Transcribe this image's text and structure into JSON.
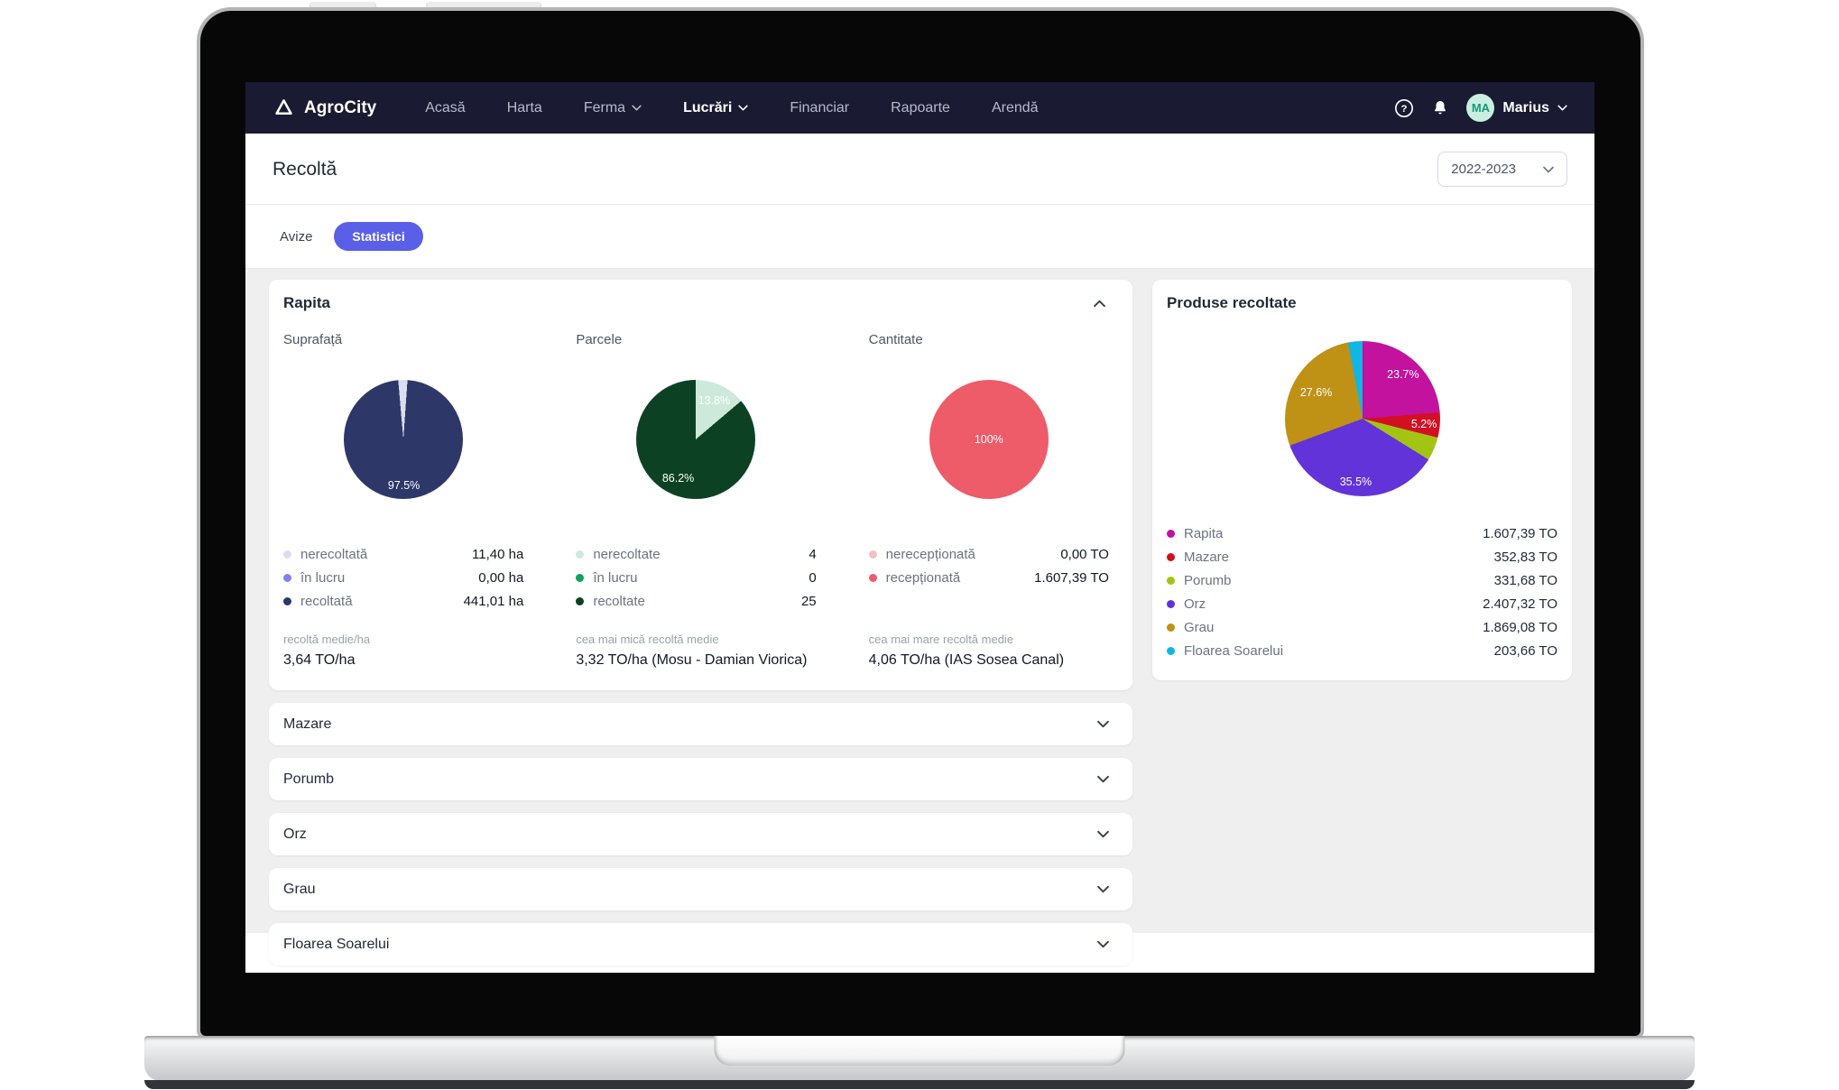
{
  "colors": {
    "navbar_bg": "#1a1b32",
    "accent_pill": "#5a5fe8",
    "avatar_bg": "#c8efdf",
    "content_bg": "#efefef"
  },
  "navbar": {
    "brand": "AgroCity",
    "help_glyph": "?",
    "items": [
      {
        "label": "Acasă",
        "chevron": false,
        "active": false
      },
      {
        "label": "Harta",
        "chevron": false,
        "active": false
      },
      {
        "label": "Ferma",
        "chevron": true,
        "active": false
      },
      {
        "label": "Lucrări",
        "chevron": true,
        "active": true
      },
      {
        "label": "Financiar",
        "chevron": false,
        "active": false
      },
      {
        "label": "Rapoarte",
        "chevron": false,
        "active": false
      },
      {
        "label": "Arendă",
        "chevron": false,
        "active": false
      }
    ],
    "user": {
      "initials": "MA",
      "name": "Marius"
    }
  },
  "header": {
    "title": "Recoltă",
    "year": "2022-2023"
  },
  "tabs": [
    {
      "label": "Avize",
      "active": false
    },
    {
      "label": "Statistici",
      "active": true
    }
  ],
  "rapita": {
    "title": "Rapita",
    "columns": [
      {
        "label": "Suprafață",
        "legend": [
          {
            "name": "nerecoltată",
            "value": "11,40 ha",
            "color": "#d9def5"
          },
          {
            "name": "în lucru",
            "value": "0,00 ha",
            "color": "#7d82ef"
          },
          {
            "name": "recoltată",
            "value": "441,01 ha",
            "color": "#2d3869"
          }
        ],
        "stat": {
          "label": "recoltă medie/ha",
          "value": "3,64 TO/ha"
        }
      },
      {
        "label": "Parcele",
        "legend": [
          {
            "name": "nerecoltate",
            "value": "4",
            "color": "#cde9da"
          },
          {
            "name": "în lucru",
            "value": "0",
            "color": "#0fa35b"
          },
          {
            "name": "recoltate",
            "value": "25",
            "color": "#0c4223"
          }
        ],
        "stat": {
          "label": "cea mai mică recoltă medie",
          "value": "3,32 TO/ha (Mosu - Damian Viorica)"
        }
      },
      {
        "label": "Cantitate",
        "legend": [
          {
            "name": "nerecepționată",
            "value": "0,00 TO",
            "color": "#f4bfc4"
          },
          {
            "name": "recepționată",
            "value": "1.607,39 TO",
            "color": "#ed5c68"
          }
        ],
        "stat": {
          "label": "cea mai mare recoltă medie",
          "value": "4,06 TO/ha (IAS Sosea Canal)"
        }
      }
    ]
  },
  "produse": {
    "title": "Produse recoltate",
    "items": [
      {
        "name": "Rapita",
        "value": "1.607,39 TO",
        "color": "#c2129e"
      },
      {
        "name": "Mazare",
        "value": "352,83 TO",
        "color": "#d30f22"
      },
      {
        "name": "Porumb",
        "value": "331,68 TO",
        "color": "#a2c513"
      },
      {
        "name": "Orz",
        "value": "2.407,32 TO",
        "color": "#6133d9"
      },
      {
        "name": "Grau",
        "value": "1.869,08 TO",
        "color": "#bf9115"
      },
      {
        "name": "Floarea Soarelui",
        "value": "203,66 TO",
        "color": "#13b5e2"
      }
    ]
  },
  "accordions": [
    {
      "title": "Mazare"
    },
    {
      "title": "Porumb"
    },
    {
      "title": "Orz"
    },
    {
      "title": "Grau"
    },
    {
      "title": "Floarea Soarelui"
    }
  ],
  "chart_data": [
    {
      "type": "pie",
      "title": "Suprafață",
      "unit": "ha",
      "rotate": -5,
      "slices": [
        {
          "name": "nerecoltată",
          "value": 11.4,
          "pct": 2.5,
          "pct_label": "2.5%",
          "color": "#d9def5",
          "show_label": false
        },
        {
          "name": "în lucru",
          "value": 0.0,
          "pct": 0,
          "pct_label": "0%",
          "color": "#7d82ef",
          "show_label": false
        },
        {
          "name": "recoltată",
          "value": 441.01,
          "pct": 97.5,
          "pct_label": "97.5%",
          "color": "#2d3869",
          "show_label": true,
          "label_r": 0.78
        }
      ]
    },
    {
      "type": "pie",
      "title": "Parcele",
      "unit": "parcele",
      "rotate": 0,
      "slices": [
        {
          "name": "nerecoltate",
          "value": 4,
          "pct": 13.8,
          "pct_label": "13.8%",
          "color": "#cde9da",
          "show_label": true,
          "label_r": 0.72
        },
        {
          "name": "în lucru",
          "value": 0,
          "pct": 0,
          "pct_label": "0%",
          "color": "#0fa35b",
          "show_label": false
        },
        {
          "name": "recoltate",
          "value": 25,
          "pct": 86.2,
          "pct_label": "86.2%",
          "color": "#0c4223",
          "show_label": true,
          "label_r": 0.72
        }
      ]
    },
    {
      "type": "pie",
      "title": "Cantitate",
      "unit": "TO",
      "rotate": 0,
      "slices": [
        {
          "name": "nerecepționată",
          "value": 0.0,
          "pct": 0,
          "pct_label": "0%",
          "color": "#f4bfc4",
          "show_label": false
        },
        {
          "name": "recepționată",
          "value": 1607.39,
          "pct": 100,
          "pct_label": "100%",
          "color": "#ed5c68",
          "show_label": true,
          "label_r": 0
        }
      ]
    },
    {
      "type": "pie",
      "title": "Produse recoltate",
      "unit": "TO",
      "rotate": 0,
      "slices": [
        {
          "name": "Rapita",
          "value": 1607.39,
          "pct": 23.7,
          "pct_label": "23.7%",
          "color": "#c2129e",
          "show_label": true,
          "label_r": 0.78
        },
        {
          "name": "Mazare",
          "value": 352.83,
          "pct": 5.2,
          "pct_label": "5.2%",
          "color": "#d30f22",
          "show_label": true,
          "label_r": 0.8
        },
        {
          "name": "Porumb",
          "value": 331.68,
          "pct": 4.9,
          "pct_label": "4.9%",
          "color": "#a2c513",
          "show_label": false
        },
        {
          "name": "Orz",
          "value": 2407.32,
          "pct": 35.5,
          "pct_label": "35.5%",
          "color": "#6133d9",
          "show_label": true,
          "label_r": 0.82
        },
        {
          "name": "Grau",
          "value": 1869.08,
          "pct": 27.6,
          "pct_label": "27.6%",
          "color": "#bf9115",
          "show_label": true,
          "label_r": 0.68
        },
        {
          "name": "Floarea Soarelui",
          "value": 203.66,
          "pct": 3.0,
          "pct_label": "3.0%",
          "color": "#13b5e2",
          "show_label": false
        }
      ]
    }
  ]
}
